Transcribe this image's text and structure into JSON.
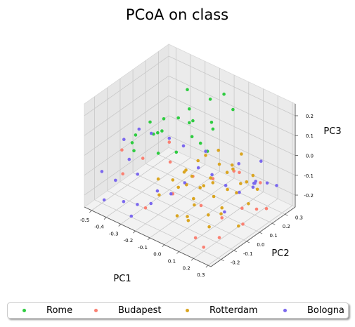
{
  "chart_data": {
    "type": "scatter",
    "subtype": "3d",
    "title": "PCoA on class",
    "xlabel": "PC1",
    "ylabel": "PC2",
    "zlabel": "PC3",
    "xlim": [
      -0.55,
      0.32
    ],
    "ylim": [
      -0.28,
      0.38
    ],
    "zlim": [
      -0.26,
      0.26
    ],
    "xticks": [
      "-0.5",
      "-0.4",
      "-0.3",
      "-0.2",
      "-0.1",
      "0.0",
      "0.1",
      "0.2",
      "0.3"
    ],
    "yticks": [
      "-0.2",
      "-0.1",
      "0.0",
      "0.1",
      "0.2",
      "0.3"
    ],
    "zticks": [
      "-0.2",
      "-0.1",
      "0.0",
      "0.1",
      "0.2"
    ],
    "grid": true,
    "legend": "bottom, 4 columns",
    "series": [
      {
        "name": "Rome",
        "color": "#2ecc40",
        "points": [
          [
            -0.3,
            -0.05,
            0.15
          ],
          [
            -0.25,
            -0.08,
            0.12
          ],
          [
            -0.2,
            -0.1,
            0.05
          ],
          [
            -0.15,
            0.0,
            0.2
          ],
          [
            -0.1,
            0.05,
            0.1
          ],
          [
            -0.05,
            0.0,
            0.22
          ],
          [
            0.0,
            0.1,
            0.15
          ],
          [
            -0.35,
            -0.12,
            0.02
          ],
          [
            -0.28,
            0.02,
            0.08
          ],
          [
            -0.18,
            0.12,
            0.18
          ],
          [
            -0.12,
            -0.05,
            0.06
          ],
          [
            -0.22,
            0.15,
            0.25
          ],
          [
            -0.08,
            0.18,
            0.12
          ],
          [
            -0.4,
            -0.05,
            0.05
          ],
          [
            0.05,
            0.2,
            0.22
          ],
          [
            -0.02,
            0.08,
            0.04
          ],
          [
            -0.32,
            0.08,
            0.1
          ],
          [
            -0.45,
            -0.02,
            -0.02
          ],
          [
            -0.15,
            0.25,
            0.18
          ],
          [
            0.02,
            -0.02,
            0.14
          ],
          [
            -0.25,
            0.2,
            0.05
          ],
          [
            -0.1,
            0.3,
            0.2
          ],
          [
            -0.38,
            0.1,
            0.0
          ]
        ]
      },
      {
        "name": "Budapest",
        "color": "#fa8072",
        "points": [
          [
            -0.45,
            -0.1,
            -0.02
          ],
          [
            -0.4,
            -0.15,
            -0.1
          ],
          [
            -0.35,
            -0.05,
            -0.05
          ],
          [
            -0.25,
            0.05,
            -0.08
          ],
          [
            -0.1,
            -0.1,
            -0.12
          ],
          [
            0.05,
            -0.05,
            -0.15
          ],
          [
            0.15,
            0.0,
            -0.2
          ],
          [
            0.2,
            0.1,
            -0.18
          ],
          [
            0.25,
            0.05,
            -0.22
          ],
          [
            0.1,
            -0.15,
            -0.25
          ],
          [
            0.28,
            0.2,
            -0.2
          ],
          [
            0.2,
            -0.2,
            -0.24
          ],
          [
            -0.2,
            -0.2,
            -0.18
          ],
          [
            0.0,
            0.1,
            -0.1
          ],
          [
            0.15,
            0.3,
            -0.16
          ],
          [
            -0.05,
            0.0,
            -0.06
          ],
          [
            0.1,
            0.15,
            -0.05
          ],
          [
            -0.3,
            0.1,
            -0.02
          ],
          [
            0.22,
            -0.1,
            -0.23
          ],
          [
            0.05,
            0.25,
            -0.12
          ],
          [
            0.3,
            0.1,
            -0.15
          ]
        ]
      },
      {
        "name": "Rotterdam",
        "color": "#daa520",
        "points": [
          [
            -0.15,
            -0.15,
            -0.12
          ],
          [
            -0.1,
            -0.1,
            -0.05
          ],
          [
            -0.05,
            -0.05,
            -0.08
          ],
          [
            0.0,
            0.0,
            -0.1
          ],
          [
            0.05,
            0.05,
            -0.15
          ],
          [
            0.1,
            0.1,
            -0.12
          ],
          [
            -0.05,
            0.1,
            0.0
          ],
          [
            0.0,
            0.15,
            -0.05
          ],
          [
            0.05,
            0.2,
            -0.08
          ],
          [
            0.1,
            -0.05,
            -0.18
          ],
          [
            0.15,
            0.0,
            -0.15
          ],
          [
            -0.1,
            0.05,
            -0.1
          ],
          [
            -0.15,
            0.0,
            -0.15
          ],
          [
            0.0,
            -0.1,
            -0.2
          ],
          [
            0.05,
            -0.15,
            -0.18
          ],
          [
            0.1,
            0.05,
            -0.22
          ],
          [
            -0.05,
            0.2,
            -0.02
          ],
          [
            0.0,
            0.25,
            -0.1
          ],
          [
            0.08,
            0.12,
            -0.05
          ],
          [
            -0.08,
            -0.02,
            -0.03
          ],
          [
            0.12,
            0.18,
            -0.12
          ],
          [
            0.18,
            0.08,
            -0.1
          ],
          [
            -0.12,
            0.12,
            -0.06
          ],
          [
            0.03,
            -0.08,
            -0.14
          ],
          [
            0.07,
            0.02,
            -0.06
          ],
          [
            -0.02,
            0.05,
            -0.12
          ],
          [
            0.15,
            -0.1,
            -0.2
          ],
          [
            0.2,
            0.15,
            -0.18
          ],
          [
            -0.2,
            -0.1,
            -0.08
          ],
          [
            0.02,
            0.3,
            -0.06
          ],
          [
            0.1,
            0.25,
            -0.15
          ],
          [
            -0.18,
            0.08,
            -0.12
          ],
          [
            0.06,
            -0.12,
            -0.08
          ],
          [
            0.13,
            0.3,
            -0.2
          ],
          [
            -0.06,
            0.15,
            -0.14
          ],
          [
            0.22,
            0.05,
            -0.24
          ],
          [
            0.0,
            -0.18,
            -0.16
          ],
          [
            0.17,
            0.22,
            -0.08
          ]
        ]
      },
      {
        "name": "Bologna",
        "color": "#7b68ee",
        "points": [
          [
            -0.5,
            -0.2,
            -0.1
          ],
          [
            -0.45,
            -0.15,
            -0.15
          ],
          [
            -0.4,
            -0.1,
            -0.05
          ],
          [
            -0.35,
            -0.2,
            -0.2
          ],
          [
            -0.3,
            -0.15,
            -0.22
          ],
          [
            -0.25,
            -0.05,
            -0.18
          ],
          [
            -0.2,
            0.0,
            -0.2
          ],
          [
            -0.15,
            0.05,
            -0.15
          ],
          [
            -0.1,
            0.1,
            -0.08
          ],
          [
            -0.05,
            0.15,
            -0.12
          ],
          [
            0.0,
            0.2,
            -0.18
          ],
          [
            0.05,
            0.25,
            -0.22
          ],
          [
            0.1,
            0.3,
            -0.2
          ],
          [
            0.15,
            0.25,
            -0.14
          ],
          [
            0.2,
            0.2,
            -0.1
          ],
          [
            0.25,
            0.15,
            -0.05
          ],
          [
            -0.48,
            -0.05,
            0.0
          ],
          [
            -0.42,
            0.0,
            0.05
          ],
          [
            -0.38,
            0.05,
            0.02
          ],
          [
            -0.3,
            0.1,
            0.0
          ],
          [
            -0.22,
            0.12,
            -0.02
          ],
          [
            -0.12,
            0.18,
            -0.04
          ],
          [
            0.02,
            0.28,
            -0.1
          ],
          [
            0.12,
            0.34,
            -0.08
          ],
          [
            0.28,
            0.28,
            -0.12
          ],
          [
            -0.44,
            -0.25,
            -0.2
          ],
          [
            -0.28,
            -0.22,
            -0.24
          ],
          [
            -0.18,
            -0.18,
            -0.16
          ],
          [
            0.08,
            0.1,
            -0.24
          ],
          [
            0.18,
            0.32,
            -0.16
          ],
          [
            -0.36,
            -0.08,
            -0.12
          ]
        ]
      }
    ]
  }
}
